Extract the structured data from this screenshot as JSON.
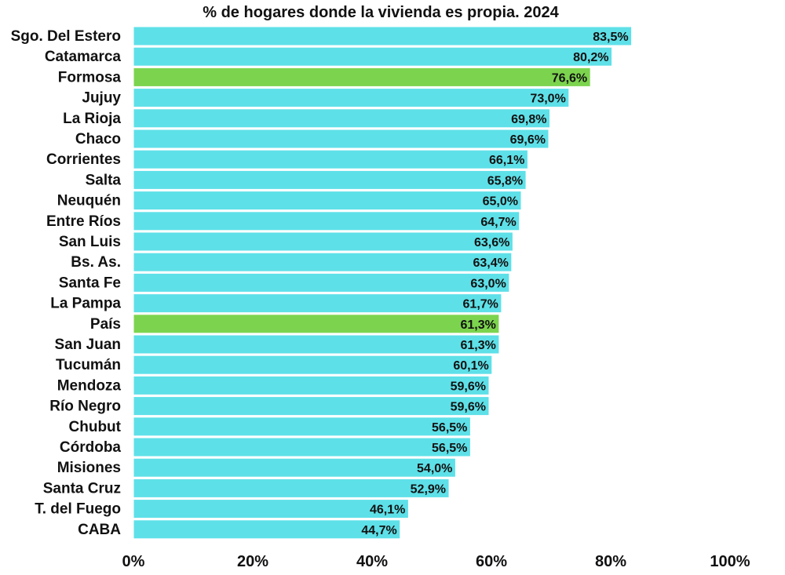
{
  "chart_data": {
    "type": "bar",
    "orientation": "horizontal",
    "title": "% de hogares donde la vivienda es propia. 2024",
    "xlabel": "",
    "ylabel": "",
    "xlim": [
      0,
      100
    ],
    "x_ticks": [
      "0%",
      "20%",
      "40%",
      "60%",
      "80%",
      "100%"
    ],
    "x_tick_values": [
      0,
      20,
      40,
      60,
      80,
      100
    ],
    "grid": false,
    "legend": "none",
    "colors": {
      "default_bar": "#5ee0e8",
      "highlight_bar": "#7cd44e",
      "bar_outline": "#ffffff"
    },
    "categories": [
      "Sgo. Del Estero",
      "Catamarca",
      "Formosa",
      "Jujuy",
      "La Rioja",
      "Chaco",
      "Corrientes",
      "Salta",
      "Neuquén",
      "Entre Ríos",
      "San Luis",
      "Bs. As.",
      "Santa Fe",
      "La Pampa",
      "País",
      "San Juan",
      "Tucumán",
      "Mendoza",
      "Río Negro",
      "Chubut",
      "Córdoba",
      "Misiones",
      "Santa Cruz",
      "T. del Fuego",
      "CABA"
    ],
    "values": [
      83.5,
      80.2,
      76.6,
      73.0,
      69.8,
      69.6,
      66.1,
      65.8,
      65.0,
      64.7,
      63.6,
      63.4,
      63.0,
      61.7,
      61.3,
      61.3,
      60.1,
      59.6,
      59.6,
      56.5,
      56.5,
      54.0,
      52.9,
      46.1,
      44.7
    ],
    "value_labels": [
      "83,5%",
      "80,2%",
      "76,6%",
      "73,0%",
      "69,8%",
      "69,6%",
      "66,1%",
      "65,8%",
      "65,0%",
      "64,7%",
      "63,6%",
      "63,4%",
      "63,0%",
      "61,7%",
      "61,3%",
      "61,3%",
      "60,1%",
      "59,6%",
      "59,6%",
      "56,5%",
      "56,5%",
      "54,0%",
      "52,9%",
      "46,1%",
      "44,7%"
    ],
    "highlighted": [
      "Formosa",
      "País"
    ]
  }
}
